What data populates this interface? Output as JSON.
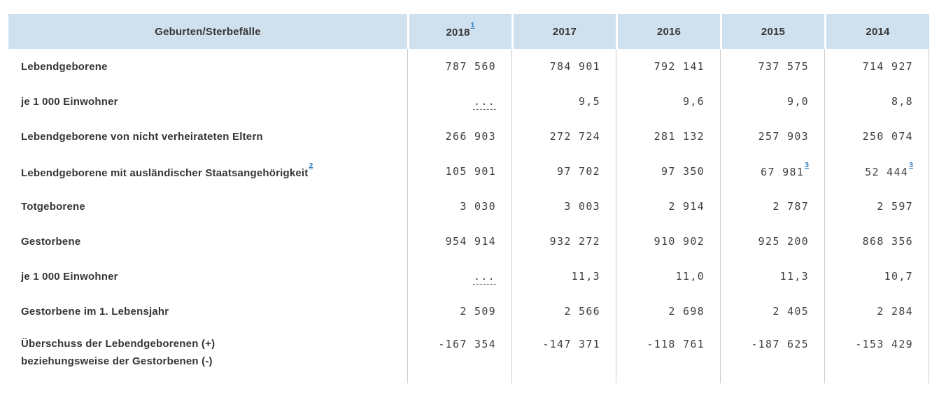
{
  "colors": {
    "header_bg": "#cfe0ee",
    "label_text": "#363636",
    "number_text": "#404040",
    "link_blue": "#2f7bb9",
    "grid_line": "#cccccc"
  },
  "table": {
    "corner_label": "Geburten/Sterbefälle",
    "year_columns": [
      {
        "label": "2018",
        "footnote": "1"
      },
      {
        "label": "2017",
        "footnote": ""
      },
      {
        "label": "2016",
        "footnote": ""
      },
      {
        "label": "2015",
        "footnote": ""
      },
      {
        "label": "2014",
        "footnote": ""
      }
    ],
    "rows": [
      {
        "label": "Lebendgeborene",
        "label_line2": "",
        "label_footnote": "",
        "cells": [
          {
            "text": "787 560",
            "footnote": "",
            "tooltip": false
          },
          {
            "text": "784 901",
            "footnote": "",
            "tooltip": false
          },
          {
            "text": "792 141",
            "footnote": "",
            "tooltip": false
          },
          {
            "text": "737 575",
            "footnote": "",
            "tooltip": false
          },
          {
            "text": "714 927",
            "footnote": "",
            "tooltip": false
          }
        ]
      },
      {
        "label": "je 1 000 Einwohner",
        "label_line2": "",
        "label_footnote": "",
        "cells": [
          {
            "text": "...",
            "footnote": "",
            "tooltip": true
          },
          {
            "text": "9,5",
            "footnote": "",
            "tooltip": false
          },
          {
            "text": "9,6",
            "footnote": "",
            "tooltip": false
          },
          {
            "text": "9,0",
            "footnote": "",
            "tooltip": false
          },
          {
            "text": "8,8",
            "footnote": "",
            "tooltip": false
          }
        ]
      },
      {
        "label": "Lebendgeborene von nicht verheirateten Eltern",
        "label_line2": "",
        "label_footnote": "",
        "cells": [
          {
            "text": "266 903",
            "footnote": "",
            "tooltip": false
          },
          {
            "text": "272 724",
            "footnote": "",
            "tooltip": false
          },
          {
            "text": "281 132",
            "footnote": "",
            "tooltip": false
          },
          {
            "text": "257 903",
            "footnote": "",
            "tooltip": false
          },
          {
            "text": "250 074",
            "footnote": "",
            "tooltip": false
          }
        ]
      },
      {
        "label": "Lebendgeborene mit ausländischer Staatsangehörigkeit",
        "label_line2": "",
        "label_footnote": "2",
        "cells": [
          {
            "text": "105 901",
            "footnote": "",
            "tooltip": false
          },
          {
            "text": "97 702",
            "footnote": "",
            "tooltip": false
          },
          {
            "text": "97 350",
            "footnote": "",
            "tooltip": false
          },
          {
            "text": "67 981",
            "footnote": "3",
            "tooltip": false
          },
          {
            "text": "52 444",
            "footnote": "3",
            "tooltip": false
          }
        ]
      },
      {
        "label": "Totgeborene",
        "label_line2": "",
        "label_footnote": "",
        "cells": [
          {
            "text": "3 030",
            "footnote": "",
            "tooltip": false
          },
          {
            "text": "3 003",
            "footnote": "",
            "tooltip": false
          },
          {
            "text": "2 914",
            "footnote": "",
            "tooltip": false
          },
          {
            "text": "2 787",
            "footnote": "",
            "tooltip": false
          },
          {
            "text": "2 597",
            "footnote": "",
            "tooltip": false
          }
        ]
      },
      {
        "label": "Gestorbene",
        "label_line2": "",
        "label_footnote": "",
        "cells": [
          {
            "text": "954 914",
            "footnote": "",
            "tooltip": false
          },
          {
            "text": "932 272",
            "footnote": "",
            "tooltip": false
          },
          {
            "text": "910 902",
            "footnote": "",
            "tooltip": false
          },
          {
            "text": "925 200",
            "footnote": "",
            "tooltip": false
          },
          {
            "text": "868 356",
            "footnote": "",
            "tooltip": false
          }
        ]
      },
      {
        "label": "je 1 000 Einwohner",
        "label_line2": "",
        "label_footnote": "",
        "cells": [
          {
            "text": "...",
            "footnote": "",
            "tooltip": true
          },
          {
            "text": "11,3",
            "footnote": "",
            "tooltip": false
          },
          {
            "text": "11,0",
            "footnote": "",
            "tooltip": false
          },
          {
            "text": "11,3",
            "footnote": "",
            "tooltip": false
          },
          {
            "text": "10,7",
            "footnote": "",
            "tooltip": false
          }
        ]
      },
      {
        "label": "Gestorbene im 1. Lebensjahr",
        "label_line2": "",
        "label_footnote": "",
        "cells": [
          {
            "text": "2 509",
            "footnote": "",
            "tooltip": false
          },
          {
            "text": "2 566",
            "footnote": "",
            "tooltip": false
          },
          {
            "text": "2 698",
            "footnote": "",
            "tooltip": false
          },
          {
            "text": "2 405",
            "footnote": "",
            "tooltip": false
          },
          {
            "text": "2 284",
            "footnote": "",
            "tooltip": false
          }
        ]
      },
      {
        "label": "Überschuss der Lebendgeborenen (+)",
        "label_line2": "beziehungsweise der Gestorbenen (-)",
        "label_footnote": "",
        "cells": [
          {
            "text": "-167 354",
            "footnote": "",
            "tooltip": false
          },
          {
            "text": "-147 371",
            "footnote": "",
            "tooltip": false
          },
          {
            "text": "-118 761",
            "footnote": "",
            "tooltip": false
          },
          {
            "text": "-187 625",
            "footnote": "",
            "tooltip": false
          },
          {
            "text": "-153 429",
            "footnote": "",
            "tooltip": false
          }
        ]
      }
    ]
  },
  "chart_data": {
    "type": "table",
    "title": "Geburten/Sterbefälle",
    "columns": [
      "Geburten/Sterbefälle",
      "2018",
      "2017",
      "2016",
      "2015",
      "2014"
    ],
    "rows": [
      [
        "Lebendgeborene",
        "787 560",
        "784 901",
        "792 141",
        "737 575",
        "714 927"
      ],
      [
        "je 1 000 Einwohner",
        "...",
        "9,5",
        "9,6",
        "9,0",
        "8,8"
      ],
      [
        "Lebendgeborene von nicht verheirateten Eltern",
        "266 903",
        "272 724",
        "281 132",
        "257 903",
        "250 074"
      ],
      [
        "Lebendgeborene mit ausländischer Staatsangehörigkeit",
        "105 901",
        "97 702",
        "97 350",
        "67 981",
        "52 444"
      ],
      [
        "Totgeborene",
        "3 030",
        "3 003",
        "2 914",
        "2 787",
        "2 597"
      ],
      [
        "Gestorbene",
        "954 914",
        "932 272",
        "910 902",
        "925 200",
        "868 356"
      ],
      [
        "je 1 000 Einwohner",
        "...",
        "11,3",
        "11,0",
        "11,3",
        "10,7"
      ],
      [
        "Gestorbene im 1. Lebensjahr",
        "2 509",
        "2 566",
        "2 698",
        "2 405",
        "2 284"
      ],
      [
        "Überschuss der Lebendgeborenen (+) beziehungsweise der Gestorbenen (-)",
        "-167 354",
        "-147 371",
        "-118 761",
        "-187 625",
        "-153 429"
      ]
    ],
    "footnote_markers": [
      "1 on 2018 header",
      "2 on Lebendgeborene mit ausländischer Staatsangehörigkeit",
      "3 on 67 981 (2015)",
      "3 on 52 444 (2014)"
    ]
  }
}
